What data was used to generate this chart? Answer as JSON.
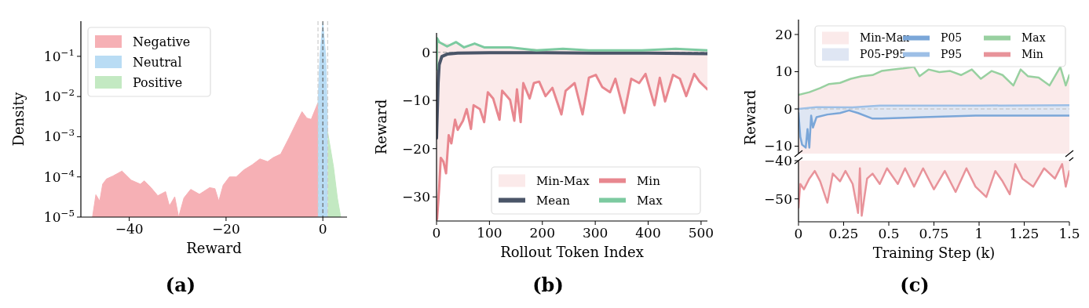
{
  "chart_data": [
    {
      "type": "area",
      "xlabel": "Reward",
      "ylabel": "Density",
      "log": "y",
      "xlim": [
        -50,
        5
      ],
      "xticks": [
        -40,
        -20,
        0
      ],
      "ylim": [
        1e-05,
        0.75
      ],
      "yticks": [
        {
          "value": 1e-05,
          "label": "10$^{−5}$"
        },
        {
          "value": 0.0001,
          "label": "10$^{−4}$"
        },
        {
          "value": 0.001,
          "label": "10$^{−3}$"
        },
        {
          "value": 0.01,
          "label": "10$^{−2}$"
        },
        {
          "value": 0.1,
          "label": "10$^{−1}$"
        }
      ],
      "legend": "top left",
      "annotations": [
        "(a)"
      ],
      "ref_lines": [
        {
          "axis": "x",
          "value": -1,
          "color": "#cccccc",
          "line_style": "dashed"
        },
        {
          "axis": "x",
          "value": 0,
          "color": "#666666",
          "line_style": "dashed"
        },
        {
          "axis": "x",
          "value": 1,
          "color": "#cccccc",
          "line_style": "dashed"
        }
      ],
      "series": [
        {
          "name": "Negative",
          "color": "#f6b0b5",
          "x": [
            -47.6,
            -46.9,
            -46.1,
            -45.5,
            -44.7,
            -43.4,
            -41.5,
            -39.6,
            -37.7,
            -36.9,
            -35.5,
            -34.1,
            -32.5,
            -31.7,
            -30.6,
            -29.8,
            -28.7,
            -27.3,
            -25.5,
            -23.4,
            -22.3,
            -21.5,
            -20.6,
            -19.3,
            -17.9,
            -16.3,
            -14.6,
            -13,
            -11.4,
            -10.3,
            -8.7,
            -7,
            -5.4,
            -4.3,
            -3.3,
            -2.4,
            -1.1,
            -1
          ],
          "values": [
            1e-05,
            3.6e-05,
            2.5e-05,
            6.6e-05,
            8.9e-05,
            0.000105,
            0.00014,
            8.3e-05,
            6.6e-05,
            8e-05,
            5.4e-05,
            3.4e-05,
            4.3e-05,
            1.9e-05,
            3.2e-05,
            1e-05,
            3e-05,
            4.9e-05,
            3.7e-05,
            5.4e-05,
            5.1e-05,
            2.5e-05,
            6.2e-05,
            0.0001,
            0.0001,
            0.00015,
            0.0002,
            0.00028,
            0.00024,
            0.0003,
            0.00037,
            0.00093,
            0.0023,
            0.0042,
            0.0029,
            0.0027,
            0.0066,
            0.007
          ]
        },
        {
          "name": "Neutral",
          "color": "#b9dcf4",
          "x": [
            -1,
            -0.6,
            0,
            0.6,
            1
          ],
          "values": [
            0.007,
            0.1,
            0.7,
            0.1,
            0.0013
          ]
        },
        {
          "name": "Positive",
          "color": "#c3e9c2",
          "x": [
            1,
            2.2,
            3,
            3.7
          ],
          "values": [
            0.0013,
            0.00018,
            3e-05,
            1e-05
          ]
        }
      ]
    },
    {
      "type": "line",
      "xlabel": "Rollout Token Index",
      "ylabel": "Reward",
      "xlim": [
        0,
        512
      ],
      "xticks": [
        0,
        100,
        200,
        300,
        400,
        500
      ],
      "ylim": [
        -35,
        4
      ],
      "yticks": [
        -30,
        -20,
        -10,
        0
      ],
      "legend": "bottom right",
      "annotations": [
        "(b)"
      ],
      "ref_lines": [
        {
          "axis": "y",
          "value": 0,
          "color": "#aaaaaa",
          "line_style": "dashed"
        }
      ],
      "series": [
        {
          "name": "Min-Max",
          "color": "#fbeaea",
          "x": [
            1,
            5,
            8,
            13,
            18,
            23,
            28,
            35,
            40,
            50,
            57,
            65,
            70,
            82,
            90,
            97,
            107,
            119,
            124,
            139,
            147,
            152,
            159,
            164,
            176,
            184,
            194,
            206,
            219,
            236,
            244,
            261,
            276,
            288,
            301,
            313,
            328,
            338,
            355,
            368,
            383,
            395,
            412,
            422,
            432,
            447,
            460,
            472,
            487,
            497,
            512
          ],
          "lower": [
            -34.6,
            -28.1,
            -21.9,
            -22.7,
            -25.1,
            -17.2,
            -18.9,
            -14,
            -16.1,
            -14.2,
            -11.8,
            -15.9,
            -11,
            -11.8,
            -14.5,
            -8.3,
            -9.6,
            -14,
            -8,
            -9.9,
            -14.2,
            -7.7,
            -14.5,
            -6.4,
            -9.6,
            -6.4,
            -6.1,
            -9.1,
            -7.4,
            -12.9,
            -8,
            -6.4,
            -12.9,
            -5.3,
            -4.7,
            -7.2,
            -8.3,
            -5.5,
            -12.6,
            -5.5,
            -6.4,
            -4.5,
            -11,
            -5.3,
            -10.2,
            -4.7,
            -5.5,
            -9.1,
            -4.5,
            -6.1,
            -7.7
          ],
          "upper": [
            2.9,
            2.3,
            2.1,
            2,
            1.9,
            1.8,
            1.6,
            1.8,
            2.1,
            1.2,
            1.0,
            1.4,
            1.8,
            1.3,
            1.0,
            1.1,
            1.0,
            0.9,
            1.0,
            1.0,
            0.8,
            0.8,
            0.9,
            0.7,
            0.6,
            0.8,
            0.5,
            0.6,
            0.7,
            0.6,
            0.5,
            0.6,
            0.4,
            0.6,
            0.5,
            0.5,
            0.4,
            0.5,
            0.4,
            0.4,
            0.5,
            0.4,
            0.5,
            0.6,
            0.7,
            0.7,
            0.5,
            0.6,
            0.7,
            0.5,
            0.4
          ],
          "values": [
            null,
            null,
            null,
            null,
            null,
            null,
            null,
            null,
            null,
            null,
            null,
            null,
            null,
            null,
            null,
            null,
            null,
            null,
            null,
            null,
            null,
            null,
            null,
            null,
            null,
            null,
            null,
            null,
            null,
            null,
            null,
            null,
            null,
            null,
            null,
            null,
            null,
            null,
            null,
            null,
            null,
            null,
            null,
            null,
            null,
            null,
            null,
            null,
            null,
            null,
            null
          ]
        },
        {
          "name": "Mean",
          "color": "#4a5568",
          "x": [
            0,
            3,
            5,
            10,
            20,
            40,
            100,
            200,
            300,
            400,
            512
          ],
          "values": [
            -17.8,
            -6.4,
            -2.6,
            -0.9,
            -0.4,
            -0.2,
            -0.1,
            -0.1,
            -0.2,
            -0.2,
            -0.3
          ]
        },
        {
          "name": "Min",
          "color": "#e8878f",
          "x": [
            1,
            5,
            8,
            13,
            18,
            23,
            28,
            35,
            40,
            50,
            57,
            65,
            70,
            82,
            90,
            97,
            107,
            119,
            124,
            139,
            147,
            152,
            159,
            164,
            176,
            184,
            194,
            206,
            219,
            236,
            244,
            261,
            276,
            288,
            301,
            313,
            328,
            338,
            355,
            368,
            383,
            395,
            412,
            422,
            432,
            447,
            460,
            472,
            487,
            497,
            512
          ],
          "values": [
            -34.6,
            -28.1,
            -21.9,
            -22.7,
            -25.1,
            -17.2,
            -18.9,
            -14,
            -16.1,
            -14.2,
            -11.8,
            -15.9,
            -11,
            -11.8,
            -14.5,
            -8.3,
            -9.6,
            -14,
            -8,
            -9.9,
            -14.2,
            -7.7,
            -14.5,
            -6.4,
            -9.6,
            -6.4,
            -6.1,
            -9.1,
            -7.4,
            -12.9,
            -8,
            -6.4,
            -12.9,
            -5.3,
            -4.7,
            -7.2,
            -8.3,
            -5.5,
            -12.6,
            -5.5,
            -6.4,
            -4.5,
            -11,
            -5.3,
            -10.2,
            -4.7,
            -5.5,
            -9.1,
            -4.5,
            -6.1,
            -7.7
          ]
        },
        {
          "name": "Max",
          "color": "#7ccaa0",
          "x": [
            0,
            1,
            5,
            20,
            37,
            52,
            72,
            90,
            139,
            189,
            239,
            288,
            338,
            388,
            452,
            512
          ],
          "values": [
            -3.6,
            2.9,
            2.1,
            1.2,
            2.1,
            1.0,
            1.8,
            1.0,
            1.0,
            0.4,
            0.7,
            0.4,
            0.4,
            0.4,
            0.7,
            0.4
          ]
        }
      ]
    },
    {
      "type": "line",
      "ylabel": "Reward",
      "xlim": [
        0,
        1.5
      ],
      "ylim": [
        -12,
        24
      ],
      "yticks": [
        -10,
        0,
        10,
        20
      ],
      "tick_labels": "y",
      "legend": "top",
      "annotations": [
        "(c)"
      ],
      "ref_lines": [
        {
          "axis": "y",
          "value": 0,
          "color": "#bbbbbb",
          "line_style": "dashed"
        }
      ],
      "series": [
        {
          "name": "Min-Max",
          "color": "#fbeaea",
          "x": [
            0,
            0.06,
            0.12,
            0.17,
            0.23,
            0.29,
            0.35,
            0.41,
            0.46,
            0.52,
            0.58,
            0.64,
            0.67,
            0.72,
            0.78,
            0.84,
            0.9,
            0.96,
            1.01,
            1.07,
            1.13,
            1.19,
            1.23,
            1.27,
            1.33,
            1.39,
            1.45,
            1.48,
            1.5
          ],
          "values": [
            null,
            null,
            null,
            null,
            null,
            null,
            null,
            null,
            null,
            null,
            null,
            null,
            null,
            null,
            null,
            null,
            null,
            null,
            null,
            null,
            null,
            null,
            null,
            null,
            null,
            null,
            null,
            null,
            null
          ],
          "lower": [
            -12,
            -12,
            -12,
            -12,
            -12,
            -12,
            -12,
            -12,
            -12,
            -12,
            -12,
            -12,
            -12,
            -12,
            -12,
            -12,
            -12,
            -12,
            -12,
            -12,
            -12,
            -12,
            -12,
            -12,
            -12,
            -12,
            -12,
            -12,
            -12
          ],
          "upper": [
            3.8,
            4.5,
            5.6,
            6.7,
            7,
            8.1,
            8.8,
            9.1,
            10.2,
            10.6,
            10.9,
            11.3,
            8.8,
            10.6,
            9.9,
            10.2,
            9.1,
            10.6,
            8.1,
            10.2,
            9.1,
            6.3,
            10.6,
            8.8,
            8.4,
            6.3,
            11.3,
            6.3,
            9.1
          ]
        },
        {
          "name": "P05-P95",
          "color": "#dfe6f3",
          "x": [
            0,
            0.01,
            0.02,
            0.04,
            0.05,
            0.06,
            0.07,
            0.08,
            0.1,
            0.16,
            0.23,
            0.28,
            0.33,
            0.41,
            0.46,
            0.69,
            0.98,
            1.5
          ],
          "lower": [
            -1.1,
            -7.5,
            -9.6,
            -10.4,
            -5.4,
            -10.4,
            -1.8,
            -5,
            -2.2,
            -1.5,
            -1.1,
            -0.4,
            -1.1,
            -2.6,
            -2.6,
            -2.2,
            -1.8,
            -1.8
          ],
          "upper": [
            0,
            0,
            0,
            0,
            0.5,
            0.5,
            0.5,
            0.5,
            0.5,
            0.5,
            0.5,
            0.5,
            0.5,
            1,
            1,
            1,
            1,
            1
          ],
          "values": [
            null,
            null,
            null,
            null,
            null,
            null,
            null,
            null,
            null,
            null,
            null,
            null,
            null,
            null,
            null,
            null,
            null,
            null
          ]
        },
        {
          "name": "P05",
          "color": "#7aa6d8",
          "x": [
            0,
            0.01,
            0.02,
            0.04,
            0.05,
            0.06,
            0.07,
            0.08,
            0.1,
            0.16,
            0.23,
            0.28,
            0.33,
            0.41,
            0.46,
            0.69,
            0.98,
            1.5
          ],
          "values": [
            -1.1,
            -7.5,
            -9.6,
            -10.4,
            -5.4,
            -10.4,
            -1.8,
            -5,
            -2.2,
            -1.5,
            -1.1,
            -0.4,
            -1.1,
            -2.6,
            -2.6,
            -2.2,
            -1.8,
            -1.8
          ]
        },
        {
          "name": "P95",
          "color": "#9dbfe6",
          "x": [
            0,
            0.1,
            0.3,
            0.45,
            1,
            1.5
          ],
          "values": [
            0,
            0.5,
            0.4,
            0.9,
            0.9,
            1.0
          ]
        },
        {
          "name": "Max",
          "color": "#98d0a0",
          "x": [
            0,
            0.06,
            0.12,
            0.17,
            0.23,
            0.29,
            0.35,
            0.41,
            0.46,
            0.52,
            0.58,
            0.64,
            0.67,
            0.72,
            0.78,
            0.84,
            0.9,
            0.96,
            1.01,
            1.07,
            1.13,
            1.19,
            1.23,
            1.27,
            1.33,
            1.39,
            1.45,
            1.48,
            1.5
          ],
          "values": [
            3.8,
            4.5,
            5.6,
            6.7,
            7,
            8.1,
            8.8,
            9.1,
            10.2,
            10.6,
            10.9,
            11.3,
            8.8,
            10.6,
            9.9,
            10.2,
            9.1,
            10.6,
            8.1,
            10.2,
            9.1,
            6.3,
            10.6,
            8.8,
            8.4,
            6.3,
            11.3,
            6.3,
            9.1
          ]
        }
      ]
    },
    {
      "type": "line",
      "xlabel": "Training Step (k)",
      "xlim": [
        0,
        1.5
      ],
      "xticks": [
        0,
        0.25,
        0.5,
        0.75,
        1,
        1.25,
        1.5
      ],
      "ylim": [
        -56,
        -40
      ],
      "yticks": [
        -50,
        -40
      ],
      "series": [
        {
          "color": "#fbeaea",
          "x": [
            0,
            0.01,
            0.03,
            0.06,
            0.09,
            0.12,
            0.16,
            0.19,
            0.23,
            0.26,
            0.3,
            0.33,
            0.34,
            0.35,
            0.38,
            0.41,
            0.45,
            0.49,
            0.55,
            0.59,
            0.64,
            0.69,
            0.75,
            0.81,
            0.87,
            0.93,
            0.98,
            1.04,
            1.09,
            1.13,
            1.17,
            1.2,
            1.24,
            1.3,
            1.36,
            1.42,
            1.46,
            1.48,
            1.5
          ],
          "lower": [
            -52.3,
            -46.1,
            -47.5,
            -44.7,
            -42.7,
            -45.4,
            -51,
            -43.4,
            -45.4,
            -42.7,
            -46.1,
            -53.7,
            -42,
            -54.4,
            -44.7,
            -43.4,
            -46.1,
            -42,
            -46.1,
            -42,
            -46.8,
            -42,
            -47.5,
            -42.7,
            -48.2,
            -42,
            -46.8,
            -49.5,
            -42.7,
            -45.4,
            -48.8,
            -40.9,
            -44.7,
            -46.8,
            -42,
            -44.7,
            -40.9,
            -46.8,
            -42.7
          ],
          "upper": [
            -40,
            -40,
            -40,
            -40,
            -40,
            -40,
            -40,
            -40,
            -40,
            -40,
            -40,
            -40,
            -40,
            -40,
            -40,
            -40,
            -40,
            -40,
            -40,
            -40,
            -40,
            -40,
            -40,
            -40,
            -40,
            -40,
            -40,
            -40,
            -40,
            -40,
            -40,
            -40,
            -40,
            -40,
            -40,
            -40,
            -40,
            -40,
            -40
          ],
          "values": [
            null,
            null,
            null,
            null,
            null,
            null,
            null,
            null,
            null,
            null,
            null,
            null,
            null,
            null,
            null,
            null,
            null,
            null,
            null,
            null,
            null,
            null,
            null,
            null,
            null,
            null,
            null,
            null,
            null,
            null,
            null,
            null,
            null,
            null,
            null,
            null,
            null,
            null,
            null
          ]
        },
        {
          "name": "Min",
          "color": "#e8939a",
          "x": [
            0,
            0.01,
            0.03,
            0.06,
            0.09,
            0.12,
            0.16,
            0.19,
            0.23,
            0.26,
            0.3,
            0.33,
            0.34,
            0.35,
            0.38,
            0.41,
            0.45,
            0.49,
            0.55,
            0.59,
            0.64,
            0.69,
            0.75,
            0.81,
            0.87,
            0.93,
            0.98,
            1.04,
            1.09,
            1.13,
            1.17,
            1.2,
            1.24,
            1.3,
            1.36,
            1.42,
            1.46,
            1.48,
            1.5
          ],
          "values": [
            -52.3,
            -46.1,
            -47.5,
            -44.7,
            -42.7,
            -45.4,
            -51,
            -43.4,
            -45.4,
            -42.7,
            -46.1,
            -53.7,
            -42,
            -54.4,
            -44.7,
            -43.4,
            -46.1,
            -42,
            -46.1,
            -42,
            -46.8,
            -42,
            -47.5,
            -42.7,
            -48.2,
            -42,
            -46.8,
            -49.5,
            -42.7,
            -45.4,
            -48.8,
            -40.9,
            -44.7,
            -46.8,
            -42,
            -44.7,
            -40.9,
            -46.8,
            -42.7
          ]
        }
      ]
    }
  ]
}
